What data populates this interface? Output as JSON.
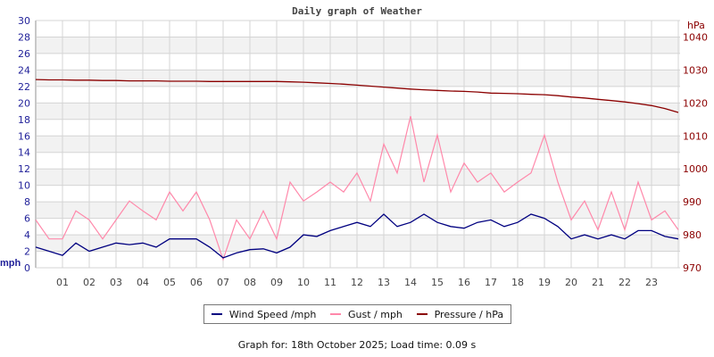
{
  "chart_data": {
    "type": "line",
    "title": "Daily graph of Weather",
    "x_hours": [
      0,
      0.5,
      1,
      1.5,
      2,
      2.5,
      3,
      3.5,
      4,
      4.5,
      5,
      5.5,
      6,
      6.5,
      7,
      7.5,
      8,
      8.5,
      9,
      9.5,
      10,
      10.5,
      11,
      11.5,
      12,
      12.5,
      13,
      13.5,
      14,
      14.5,
      15,
      15.5,
      16,
      16.5,
      17,
      17.5,
      18,
      18.5,
      19,
      19.5,
      20,
      20.5,
      21,
      21.5,
      22,
      22.5,
      23,
      23.5,
      24
    ],
    "x_tick_labels": [
      "01",
      "02",
      "03",
      "04",
      "05",
      "06",
      "07",
      "08",
      "09",
      "10",
      "11",
      "12",
      "13",
      "14",
      "15",
      "16",
      "17",
      "18",
      "19",
      "20",
      "21",
      "22",
      "23"
    ],
    "left_axis": {
      "label": "mph",
      "ylim": [
        0,
        30
      ],
      "ticks": [
        0,
        2,
        4,
        6,
        8,
        10,
        12,
        14,
        16,
        18,
        20,
        22,
        24,
        26,
        28,
        30
      ]
    },
    "right_axis": {
      "label": "hPa",
      "ylim": [
        970,
        1045
      ],
      "ticks": [
        970,
        980,
        990,
        1000,
        1010,
        1020,
        1030,
        1040
      ]
    },
    "grid": true,
    "legend_position": "bottom",
    "series": [
      {
        "name": "Wind Speed /mph",
        "axis": "left",
        "color": "#000080",
        "values": [
          2.5,
          2.0,
          1.5,
          3.0,
          2.0,
          2.5,
          3.0,
          2.8,
          3.0,
          2.5,
          3.5,
          3.5,
          3.5,
          2.5,
          1.2,
          1.8,
          2.2,
          2.3,
          1.8,
          2.5,
          4.0,
          3.8,
          4.5,
          5.0,
          5.5,
          5.0,
          6.5,
          5.0,
          5.5,
          6.5,
          5.5,
          5.0,
          4.8,
          5.5,
          5.8,
          5.0,
          5.5,
          6.5,
          6.0,
          5.0,
          3.5,
          4.0,
          3.5,
          4.0,
          3.5,
          4.5,
          4.5,
          3.8,
          3.5
        ]
      },
      {
        "name": "Gust / mph",
        "axis": "left",
        "color": "#ff88aa",
        "values": [
          5.8,
          3.5,
          3.5,
          6.9,
          5.8,
          3.5,
          5.8,
          8.1,
          6.9,
          5.8,
          9.2,
          6.9,
          9.2,
          5.8,
          1.0,
          5.8,
          3.5,
          6.9,
          3.5,
          10.4,
          8.1,
          9.2,
          10.4,
          9.2,
          11.5,
          8.1,
          15.0,
          11.5,
          18.4,
          10.4,
          16.1,
          9.2,
          12.7,
          10.4,
          11.5,
          9.2,
          10.4,
          11.5,
          16.1,
          10.4,
          5.8,
          8.1,
          4.6,
          9.2,
          4.6,
          10.4,
          5.8,
          6.9,
          4.6
        ]
      },
      {
        "name": "Pressure / hPa",
        "axis": "right",
        "color": "#8b0000",
        "values": [
          1027.1,
          1027.0,
          1027.0,
          1026.9,
          1026.9,
          1026.8,
          1026.8,
          1026.7,
          1026.7,
          1026.7,
          1026.6,
          1026.6,
          1026.6,
          1026.5,
          1026.5,
          1026.5,
          1026.5,
          1026.5,
          1026.5,
          1026.4,
          1026.3,
          1026.1,
          1025.9,
          1025.7,
          1025.4,
          1025.1,
          1024.8,
          1024.5,
          1024.2,
          1024.0,
          1023.8,
          1023.6,
          1023.5,
          1023.3,
          1023.0,
          1022.9,
          1022.8,
          1022.6,
          1022.5,
          1022.2,
          1021.8,
          1021.5,
          1021.1,
          1020.7,
          1020.3,
          1019.8,
          1019.2,
          1018.3,
          1017.1
        ]
      }
    ]
  },
  "footer": "Graph for: 18th October 2025; Load time: 0.09 s"
}
